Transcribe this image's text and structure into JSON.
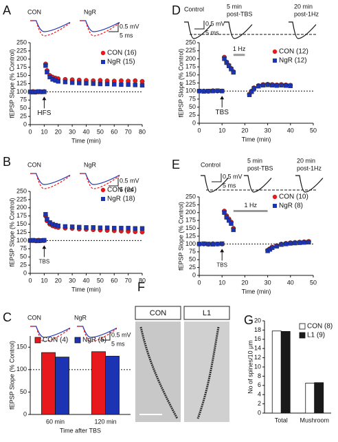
{
  "chart_data": [
    {
      "type": "scatter",
      "panel_label": "A",
      "trace_labels": [
        [
          "CON"
        ],
        [
          "NgR"
        ]
      ],
      "scale_labels": [
        "0.5 mV",
        "5 ms"
      ],
      "stimulus_label": "HFS",
      "x_label": "Time (min)",
      "y_label": "fEPSP Slope (% Control)",
      "reference_line": 100,
      "xlim": [
        0,
        80
      ],
      "xticks": [
        0,
        10,
        20,
        30,
        40,
        50,
        60,
        70,
        80
      ],
      "ylim": [
        0,
        250
      ],
      "yticks": [
        0,
        25,
        50,
        75,
        100,
        125,
        150,
        175,
        200,
        225,
        250
      ],
      "x": [
        0,
        2,
        4,
        6,
        8,
        10,
        11,
        12,
        14,
        16,
        18,
        20,
        25,
        30,
        35,
        40,
        45,
        50,
        55,
        60,
        65,
        70,
        75,
        80
      ],
      "series": [
        {
          "name": "CON (16)",
          "color": "#e8191c",
          "marker": "circle",
          "values": [
            100,
            101,
            99,
            100,
            100,
            101,
            185,
            165,
            150,
            145,
            142,
            140,
            138,
            137,
            136,
            135,
            134,
            135,
            134,
            133,
            134,
            133,
            134,
            132
          ]
        },
        {
          "name": "NgR (15)",
          "color": "#1c34b4",
          "marker": "square",
          "values": [
            100,
            99,
            100,
            101,
            100,
            100,
            180,
            160,
            145,
            138,
            135,
            132,
            130,
            128,
            127,
            126,
            125,
            124,
            124,
            123,
            122,
            122,
            121,
            120
          ]
        }
      ]
    },
    {
      "type": "scatter",
      "panel_label": "B",
      "trace_labels": [
        [
          "CON"
        ],
        [
          "NgR"
        ]
      ],
      "scale_labels": [
        "0.5 mV",
        "5 ms"
      ],
      "stimulus_label": "TBS",
      "x_label": "Time (min)",
      "y_label": "fEPSP Slope (% Control)",
      "reference_line": 100,
      "xlim": [
        0,
        80
      ],
      "xticks": [
        0,
        10,
        20,
        30,
        40,
        50,
        60,
        70,
        80
      ],
      "ylim": [
        0,
        250
      ],
      "yticks": [
        0,
        25,
        50,
        75,
        100,
        125,
        150,
        175,
        200,
        225,
        250
      ],
      "x": [
        0,
        2,
        4,
        6,
        8,
        10,
        11,
        12,
        14,
        16,
        18,
        20,
        25,
        30,
        35,
        40,
        45,
        50,
        55,
        60,
        65,
        70,
        75,
        80
      ],
      "series": [
        {
          "name": "CON (24)",
          "color": "#e8191c",
          "marker": "circle",
          "values": [
            100,
            100,
            99,
            101,
            100,
            100,
            175,
            160,
            150,
            145,
            142,
            140,
            138,
            137,
            135,
            134,
            133,
            132,
            131,
            130,
            129,
            128,
            127,
            126
          ]
        },
        {
          "name": "NgR (18)",
          "color": "#1c34b4",
          "marker": "square",
          "values": [
            100,
            101,
            100,
            99,
            100,
            101,
            180,
            165,
            155,
            150,
            147,
            145,
            143,
            142,
            141,
            140,
            140,
            139,
            139,
            138,
            138,
            138,
            137,
            137
          ]
        }
      ]
    },
    {
      "type": "bar",
      "panel_label": "C",
      "trace_labels": [
        [
          "CON"
        ],
        [
          "NgR"
        ]
      ],
      "scale_labels": [
        "0.5 mV",
        "5 ms"
      ],
      "x_label": "Time after TBS",
      "y_label": "fEPSP Slope (% Control)",
      "reference_line": 100,
      "ylim": [
        0,
        175
      ],
      "yticks": [
        0,
        50,
        100,
        150
      ],
      "categories": [
        "60 min",
        "120 min"
      ],
      "series": [
        {
          "name": "CON (4)",
          "color": "#e8191c",
          "values": [
            138,
            140
          ]
        },
        {
          "name": "NgR (5)",
          "color": "#1c34b4",
          "values": [
            128,
            130
          ]
        }
      ]
    },
    {
      "type": "scatter",
      "panel_label": "D",
      "trace_labels": [
        [
          "Control"
        ],
        [
          "5 min",
          "post-TBS"
        ],
        [
          "20 min",
          "post-1Hz"
        ]
      ],
      "scale_labels": [
        "0.5 mV",
        "5 ms"
      ],
      "stimulus_label": "TBS",
      "lfs_label": "1 Hz",
      "x_label": "Time (min)",
      "y_label": "fEPSP Slope (% Control)",
      "reference_line": 100,
      "xlim": [
        0,
        50
      ],
      "xticks": [
        0,
        10,
        20,
        30,
        40,
        50
      ],
      "ylim": [
        0,
        250
      ],
      "yticks": [
        0,
        25,
        50,
        75,
        100,
        125,
        150,
        175,
        200,
        225,
        250
      ],
      "x": [
        0,
        2,
        4,
        6,
        8,
        10,
        11,
        12,
        13,
        14,
        15,
        22,
        23,
        24,
        26,
        28,
        30,
        32,
        34,
        36,
        38,
        40
      ],
      "series": [
        {
          "name": "CON (12)",
          "color": "#e8191c",
          "marker": "circle",
          "values": [
            100,
            100,
            99,
            101,
            100,
            100,
            205,
            190,
            180,
            170,
            160,
            90,
            100,
            110,
            117,
            120,
            121,
            120,
            119,
            120,
            119,
            118
          ]
        },
        {
          "name": "NgR (12)",
          "color": "#1c34b4",
          "marker": "square",
          "values": [
            100,
            99,
            100,
            100,
            101,
            100,
            200,
            188,
            178,
            168,
            158,
            88,
            98,
            108,
            115,
            118,
            119,
            118,
            117,
            118,
            117,
            116
          ]
        }
      ]
    },
    {
      "type": "scatter",
      "panel_label": "E",
      "trace_labels": [
        [
          "Control"
        ],
        [
          "5 min",
          "post-TBS"
        ],
        [
          "20 min",
          "post-1Hz"
        ]
      ],
      "scale_labels": [
        "0.5 mV",
        "5 ms"
      ],
      "stimulus_label": "TBS",
      "lfs_label": "1 Hz",
      "x_label": "Time (min)",
      "y_label": "fEPSP Slope (% Control)",
      "reference_line": 100,
      "xlim": [
        0,
        50
      ],
      "xticks": [
        0,
        10,
        20,
        30,
        40,
        50
      ],
      "ylim": [
        0,
        250
      ],
      "yticks": [
        0,
        25,
        50,
        75,
        100,
        125,
        150,
        175,
        200,
        225,
        250
      ],
      "x": [
        0,
        2,
        4,
        6,
        8,
        10,
        11,
        12,
        13,
        14,
        15,
        30,
        31,
        32,
        34,
        36,
        38,
        40,
        42,
        44,
        46,
        48
      ],
      "series": [
        {
          "name": "CON (10)",
          "color": "#e8191c",
          "marker": "circle",
          "values": [
            100,
            100,
            99,
            101,
            100,
            100,
            205,
            190,
            180,
            170,
            150,
            80,
            85,
            90,
            95,
            100,
            102,
            104,
            105,
            106,
            107,
            108
          ]
        },
        {
          "name": "NgR (8)",
          "color": "#1c34b4",
          "marker": "square",
          "values": [
            100,
            101,
            100,
            99,
            100,
            101,
            200,
            185,
            175,
            165,
            145,
            78,
            83,
            88,
            93,
            98,
            100,
            102,
            103,
            104,
            105,
            106
          ]
        }
      ]
    },
    {
      "type": "bar",
      "panel_label": "G",
      "y_label": "No of spines/10 μm",
      "ylim": [
        0,
        20
      ],
      "yticks": [
        0,
        2,
        4,
        6,
        8,
        10,
        12,
        14,
        16,
        18,
        20
      ],
      "categories": [
        "Total",
        "Mushroom"
      ],
      "series": [
        {
          "name": "CON (8)",
          "color": "#ffffff",
          "values": [
            17.8,
            6.5
          ]
        },
        {
          "name": "L1 (9)",
          "color": "#1a1a1a",
          "values": [
            17.7,
            6.6
          ]
        }
      ]
    }
  ],
  "figure_f": {
    "panel_label": "F",
    "labels": [
      "CON",
      "L1"
    ]
  }
}
